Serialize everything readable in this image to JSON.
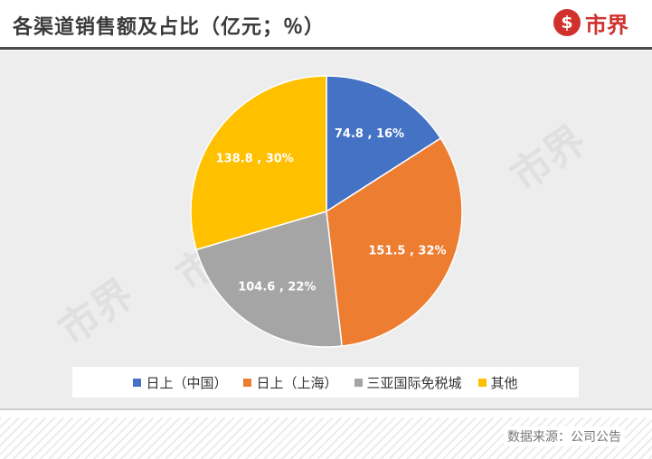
{
  "header": {
    "title": "各渠道销售额及占比（亿元；％）",
    "logo_badge": "$",
    "logo_text": "市界"
  },
  "footer": {
    "source": "数据来源：公司公告"
  },
  "colors": {
    "accent": "#d0312d",
    "slices": [
      "#4472c4",
      "#ed7d31",
      "#a5a5a5",
      "#ffc000"
    ]
  },
  "watermark": "市界",
  "chart_data": {
    "type": "pie",
    "title": "各渠道销售额及占比（亿元；％）",
    "categories": [
      "日上（中国）",
      "日上（上海）",
      "三亚国际免税城",
      "其他"
    ],
    "values": [
      74.8,
      151.5,
      104.6,
      138.8
    ],
    "percents": [
      16,
      32,
      22,
      30
    ],
    "labels": [
      "74.8 , 16%",
      "151.5 , 32%",
      "104.6 , 22%",
      "138.8 , 30%"
    ],
    "legend_position": "bottom"
  }
}
